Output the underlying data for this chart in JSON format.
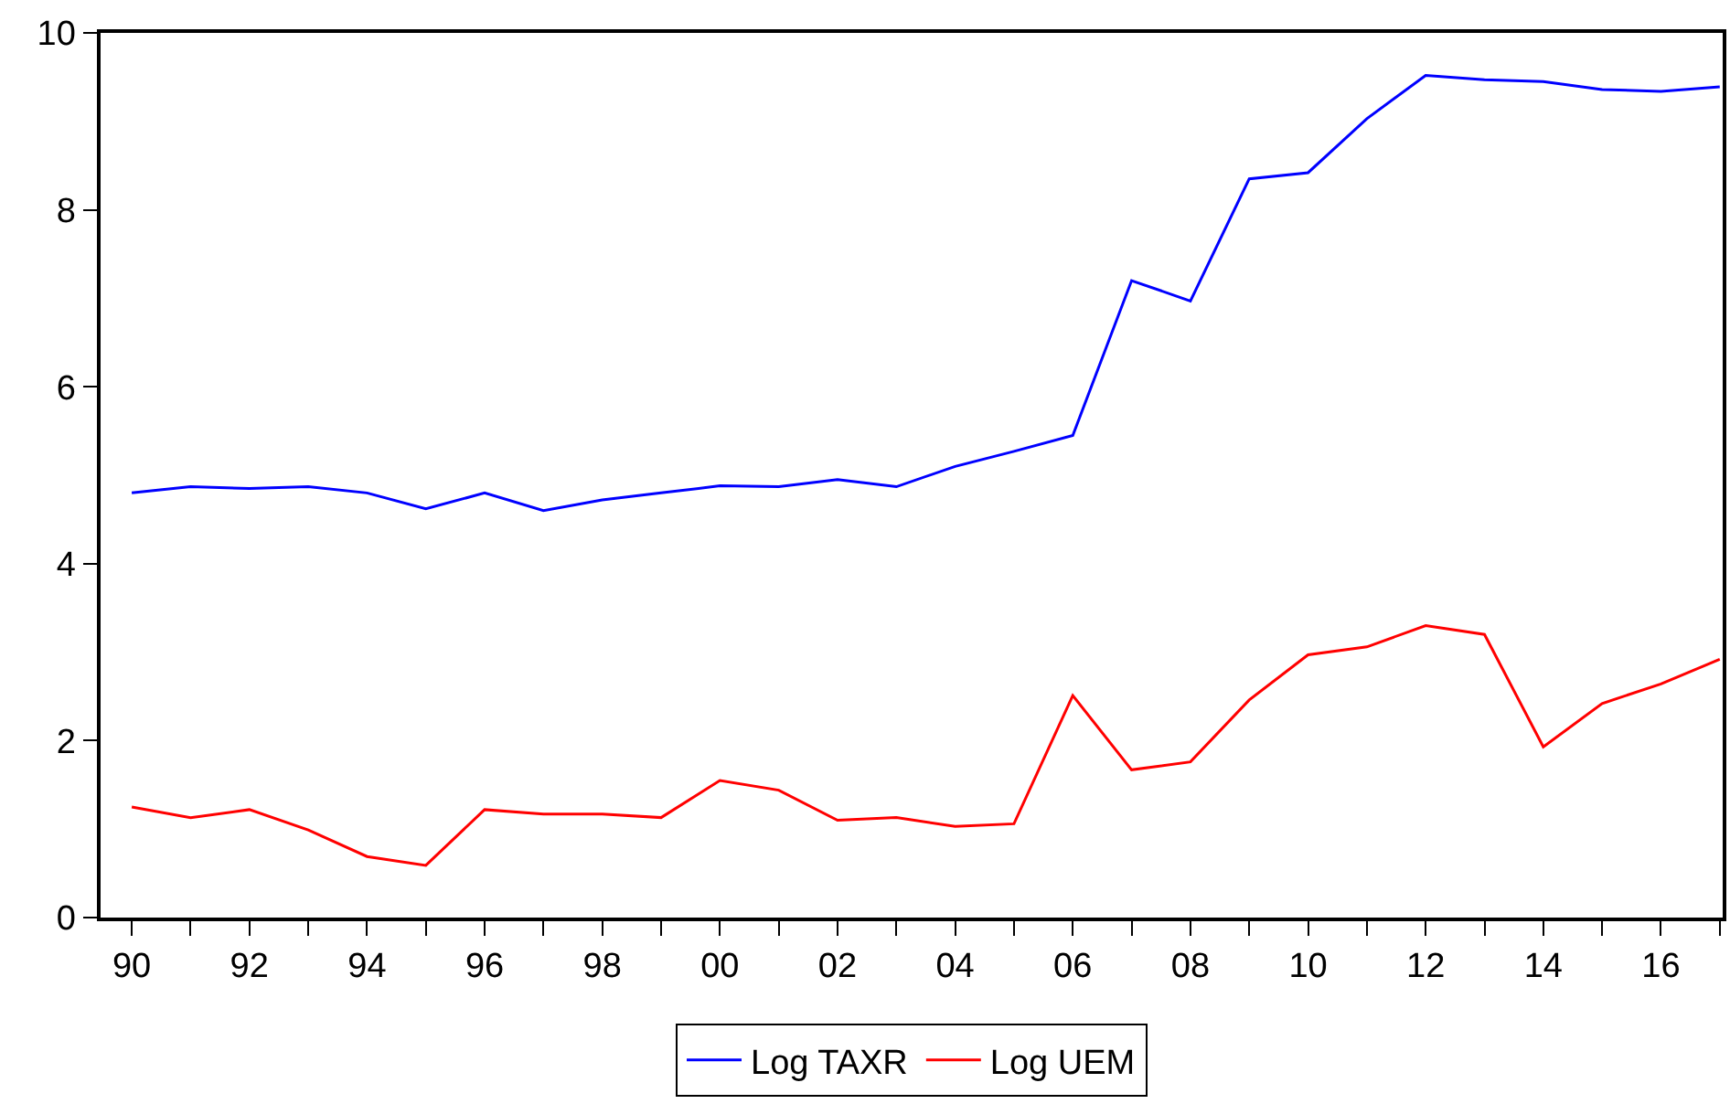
{
  "chart_data": {
    "type": "line",
    "x": [
      1990,
      1991,
      1992,
      1993,
      1994,
      1995,
      1996,
      1997,
      1998,
      1999,
      2000,
      2001,
      2002,
      2003,
      2004,
      2005,
      2006,
      2007,
      2008,
      2009,
      2010,
      2011,
      2012,
      2013,
      2014,
      2015,
      2016,
      2017
    ],
    "series": [
      {
        "name": "Log TAXR",
        "color": "#0000ff",
        "values": [
          4.8,
          4.87,
          4.85,
          4.87,
          4.8,
          4.62,
          4.8,
          4.6,
          4.72,
          4.8,
          4.88,
          4.87,
          4.95,
          4.87,
          5.1,
          5.27,
          5.45,
          7.2,
          6.97,
          8.35,
          8.42,
          9.03,
          9.52,
          9.47,
          9.45,
          9.36,
          9.34,
          9.39
        ]
      },
      {
        "name": "Log UEM",
        "color": "#ff0000",
        "values": [
          1.25,
          1.13,
          1.22,
          0.99,
          0.69,
          0.59,
          1.22,
          1.17,
          1.17,
          1.13,
          1.55,
          1.44,
          1.1,
          1.13,
          1.03,
          1.06,
          2.51,
          1.67,
          1.76,
          2.46,
          2.97,
          3.06,
          3.3,
          3.2,
          1.93,
          2.42,
          2.64,
          2.92
        ]
      }
    ],
    "xlim": [
      1989.47,
      2017.05
    ],
    "xticks": [
      {
        "value": 1990,
        "label": "90"
      },
      {
        "value": 1991,
        "label": null
      },
      {
        "value": 1992,
        "label": "92"
      },
      {
        "value": 1993,
        "label": null
      },
      {
        "value": 1994,
        "label": "94"
      },
      {
        "value": 1995,
        "label": null
      },
      {
        "value": 1996,
        "label": "96"
      },
      {
        "value": 1997,
        "label": null
      },
      {
        "value": 1998,
        "label": "98"
      },
      {
        "value": 1999,
        "label": null
      },
      {
        "value": 2000,
        "label": "00"
      },
      {
        "value": 2001,
        "label": null
      },
      {
        "value": 2002,
        "label": "02"
      },
      {
        "value": 2003,
        "label": null
      },
      {
        "value": 2004,
        "label": "04"
      },
      {
        "value": 2005,
        "label": null
      },
      {
        "value": 2006,
        "label": "06"
      },
      {
        "value": 2007,
        "label": null
      },
      {
        "value": 2008,
        "label": "08"
      },
      {
        "value": 2009,
        "label": null
      },
      {
        "value": 2010,
        "label": "10"
      },
      {
        "value": 2011,
        "label": null
      },
      {
        "value": 2012,
        "label": "12"
      },
      {
        "value": 2013,
        "label": null
      },
      {
        "value": 2014,
        "label": "14"
      },
      {
        "value": 2015,
        "label": null
      },
      {
        "value": 2016,
        "label": "16"
      },
      {
        "value": 2017,
        "label": null
      }
    ],
    "ylim": [
      0,
      10
    ],
    "yticks": [
      0,
      2,
      4,
      6,
      8,
      10
    ],
    "legend": "bottom",
    "marker": "none",
    "line_style": "solid"
  }
}
